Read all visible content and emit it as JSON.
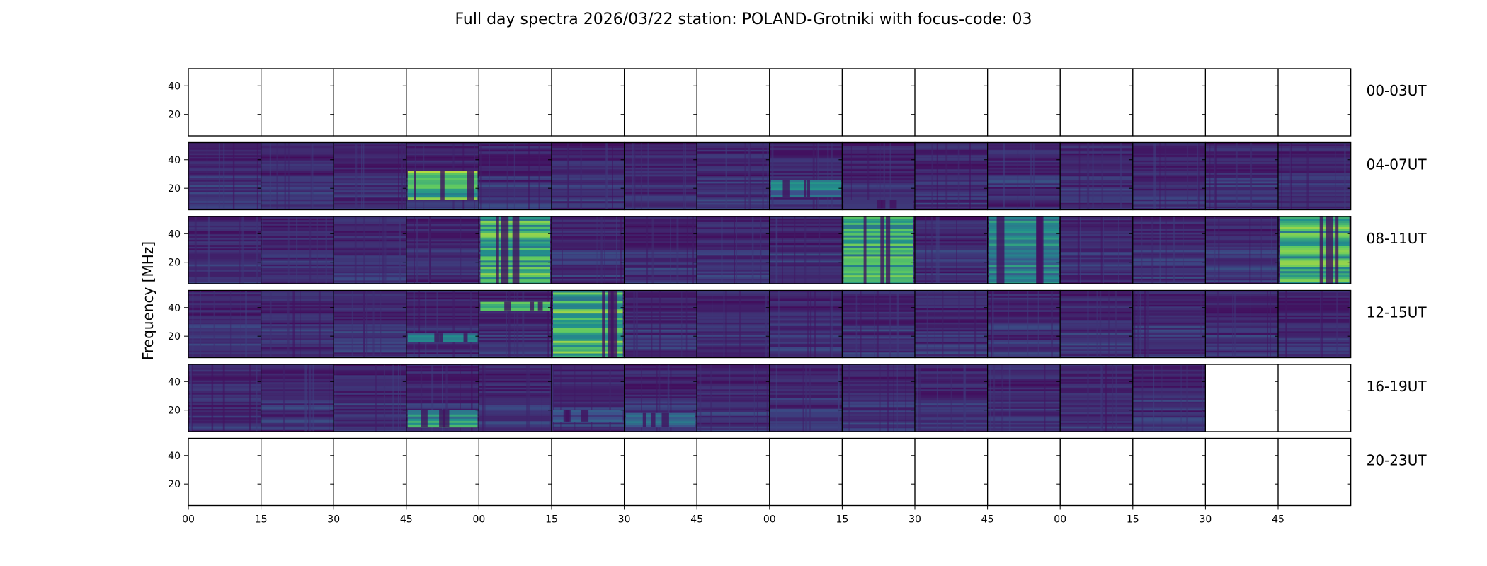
{
  "chart_data": {
    "type": "heatmap",
    "title": "Full day spectra 2026/03/22 station: POLAND-Grotniki with focus-code: 03",
    "ylabel": "Frequency [MHz]",
    "ylim": [
      5,
      52
    ],
    "yticks": [
      20,
      40
    ],
    "xticks": [
      "00",
      "15",
      "30",
      "45",
      "00",
      "15",
      "30",
      "45",
      "00",
      "15",
      "30",
      "45",
      "00",
      "15",
      "30",
      "45"
    ],
    "panels_per_row": 16,
    "rows": [
      {
        "label": "00-03UT",
        "panels": [
          0,
          0,
          0,
          0,
          0,
          0,
          0,
          0,
          0,
          0,
          0,
          0,
          0,
          0,
          0,
          0
        ],
        "bursts": []
      },
      {
        "label": "04-07UT",
        "panels": [
          1,
          1,
          1,
          1,
          1,
          1,
          1,
          1,
          1,
          1,
          1,
          1,
          1,
          1,
          1,
          1
        ],
        "bursts": [
          {
            "panel": 3,
            "freq": [
              12,
              32
            ],
            "intensity": 0.9
          },
          {
            "panel": 8,
            "freq": [
              14,
              26
            ],
            "intensity": 0.55
          },
          {
            "panel": 9,
            "freq": [
              6,
              12
            ],
            "intensity": 0.35
          }
        ]
      },
      {
        "label": "08-11UT",
        "panels": [
          1,
          1,
          1,
          1,
          1,
          1,
          1,
          1,
          1,
          1,
          1,
          1,
          1,
          1,
          1,
          1
        ],
        "bursts": [
          {
            "panel": 4,
            "freq": [
              5,
              52
            ],
            "intensity": 0.85
          },
          {
            "panel": 9,
            "freq": [
              5,
              52
            ],
            "intensity": 0.8
          },
          {
            "panel": 11,
            "freq": [
              5,
              52
            ],
            "intensity": 0.6
          },
          {
            "panel": 15,
            "freq": [
              5,
              52
            ],
            "intensity": 0.85
          }
        ]
      },
      {
        "label": "12-15UT",
        "panels": [
          1,
          1,
          1,
          1,
          1,
          1,
          1,
          1,
          1,
          1,
          1,
          1,
          1,
          1,
          1,
          1
        ],
        "bursts": [
          {
            "panel": 4,
            "freq": [
              38,
              44
            ],
            "intensity": 0.85
          },
          {
            "panel": 5,
            "freq": [
              5,
              52
            ],
            "intensity": 0.85
          },
          {
            "panel": 3,
            "freq": [
              16,
              22
            ],
            "intensity": 0.5
          }
        ]
      },
      {
        "label": "16-19UT",
        "panels": [
          1,
          1,
          1,
          1,
          1,
          1,
          1,
          1,
          1,
          1,
          1,
          1,
          1,
          1,
          0,
          0
        ],
        "bursts": [
          {
            "panel": 3,
            "freq": [
              8,
              20
            ],
            "intensity": 0.7
          },
          {
            "panel": 6,
            "freq": [
              8,
              18
            ],
            "intensity": 0.45
          },
          {
            "panel": 5,
            "freq": [
              12,
              20
            ],
            "intensity": 0.35
          }
        ]
      },
      {
        "label": "20-23UT",
        "panels": [
          0,
          0,
          0,
          0,
          0,
          0,
          0,
          0,
          0,
          0,
          0,
          0,
          0,
          0,
          0,
          0
        ],
        "bursts": []
      }
    ],
    "colormap": [
      "#440154",
      "#3b528b",
      "#21918c",
      "#5ec962",
      "#fde725"
    ],
    "grid": false,
    "legend": "none"
  }
}
